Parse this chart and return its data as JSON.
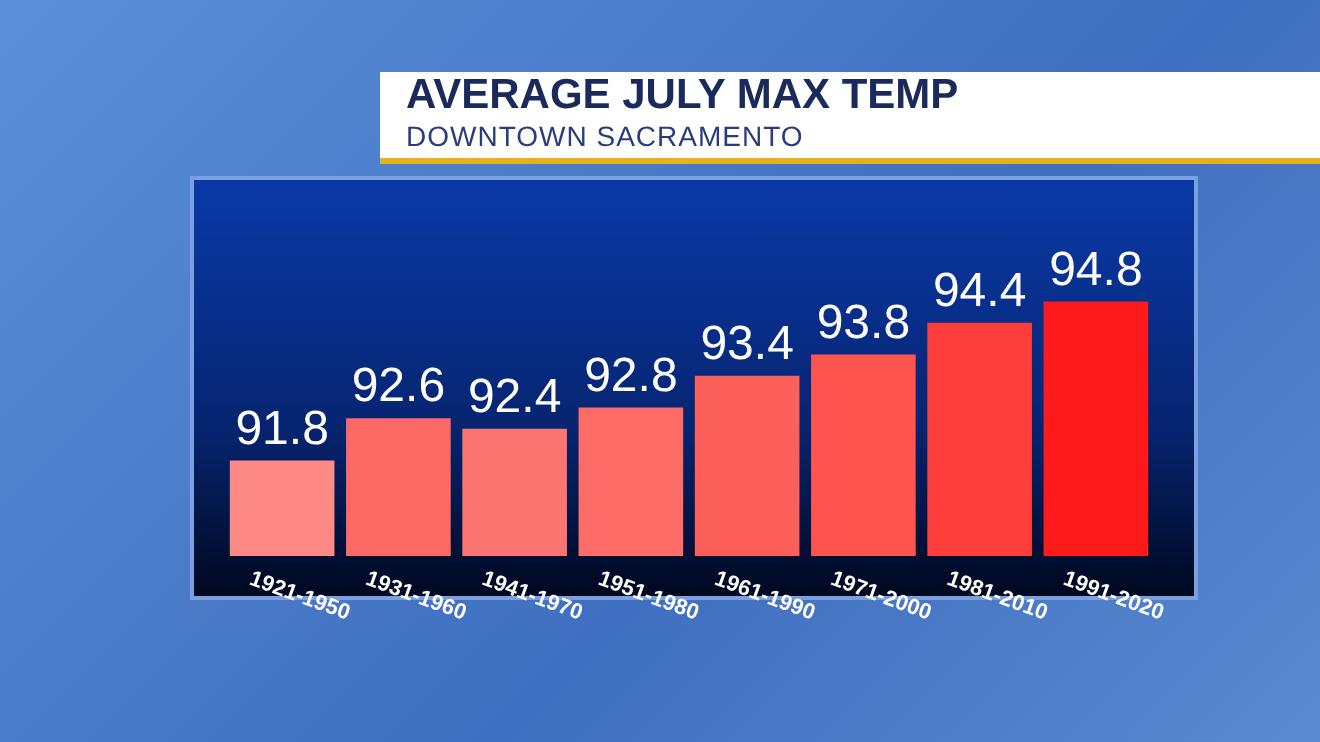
{
  "chart_data": {
    "type": "bar",
    "title": "AVERAGE JULY MAX TEMP",
    "subtitle": "DOWNTOWN SACRAMENTO",
    "categories": [
      "1921-1950",
      "1931-1960",
      "1941-1970",
      "1951-1980",
      "1961-1990",
      "1971-2000",
      "1981-2010",
      "1991-2020"
    ],
    "values": [
      91.8,
      92.6,
      92.4,
      92.8,
      93.4,
      93.8,
      94.4,
      94.8
    ],
    "colors": [
      "#fe8a85",
      "#fd6a65",
      "#fd7570",
      "#fd6c66",
      "#fd5f5a",
      "#fd5450",
      "#fd3e3b",
      "#fe1a1a"
    ],
    "tick_labels": "x",
    "data_labels": true
  }
}
